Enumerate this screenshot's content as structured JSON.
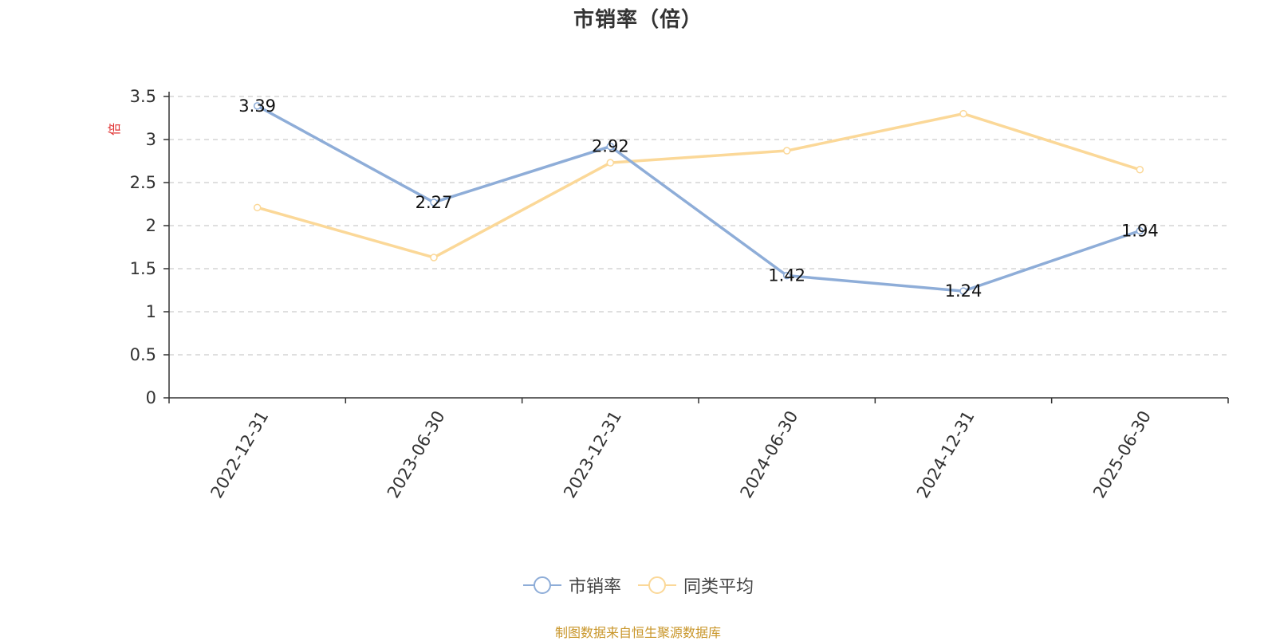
{
  "title": "市销率（倍）",
  "source_note": "制图数据来自恒生聚源数据库",
  "colors": {
    "series1": "#8eadd8",
    "series2": "#fbd898",
    "ylabel": "#e03030",
    "source": "#c9962a",
    "axis": "#333333",
    "grid": "#cccccc"
  },
  "chart_data": {
    "type": "line",
    "title": "市销率（倍）",
    "ylabel": "倍",
    "xlabel": "",
    "categories": [
      "2022-12-31",
      "2023-06-30",
      "2023-12-31",
      "2024-06-30",
      "2024-12-31",
      "2025-06-30"
    ],
    "series": [
      {
        "name": "市销率",
        "values": [
          3.39,
          2.27,
          2.92,
          1.42,
          1.24,
          1.94
        ],
        "data_labels": [
          "3.39",
          "2.27",
          "2.92",
          "1.42",
          "1.24",
          "1.94"
        ]
      },
      {
        "name": "同类平均",
        "values": [
          2.21,
          1.63,
          2.73,
          2.87,
          3.3,
          2.65
        ]
      }
    ],
    "ylim": [
      0,
      3.5
    ],
    "yticks": [
      "0",
      "0.5",
      "1",
      "1.5",
      "2",
      "2.5",
      "3",
      "3.5"
    ],
    "grid": "horizontal dashed",
    "legend": "bottom-center"
  },
  "legend": [
    {
      "label": "市销率",
      "icon": "circle-line-icon"
    },
    {
      "label": "同类平均",
      "icon": "circle-line-icon"
    }
  ]
}
